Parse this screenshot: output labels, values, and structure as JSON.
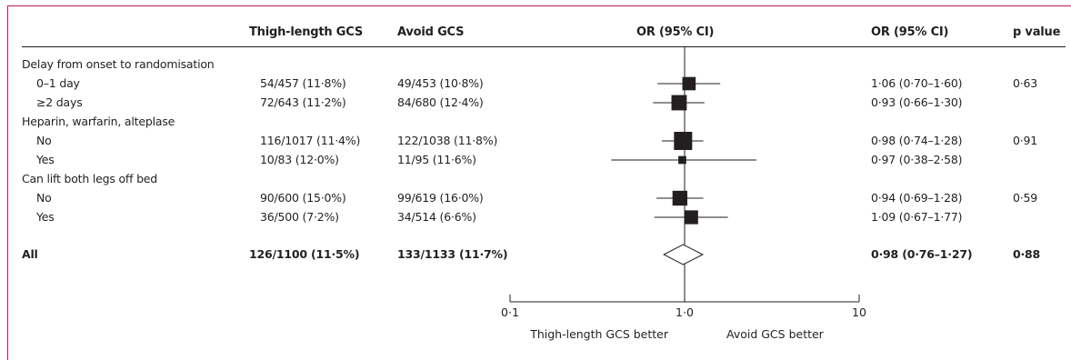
{
  "headers": {
    "thigh": "Thigh-length GCS",
    "avoid": "Avoid GCS",
    "or_plot": "OR (95% CI)",
    "or_text": "OR (95% CI)",
    "pvalue": "p value"
  },
  "rows": [
    {
      "label": "Delay from onset to randomisation",
      "type": "group"
    },
    {
      "label": "0–1 day",
      "type": "sub",
      "thigh": "54/457 (11·8%)",
      "avoid": "49/453 (10·8%)",
      "or_text": "1·06 (0·70–1·60)",
      "p": "0·63"
    },
    {
      "label": "≥2 days",
      "type": "sub",
      "thigh": "72/643 (11·2%)",
      "avoid": "84/680 (12·4%)",
      "or_text": "0·93 (0·66–1·30)",
      "p": ""
    },
    {
      "label": "Heparin, warfarin, alteplase",
      "type": "group"
    },
    {
      "label": "No",
      "type": "sub",
      "thigh": "116/1017 (11·4%)",
      "avoid": "122/1038 (11·8%)",
      "or_text": "0·98 (0·74–1·28)",
      "p": "0·91"
    },
    {
      "label": "Yes",
      "type": "sub",
      "thigh": "10/83 (12·0%)",
      "avoid": "11/95 (11·6%)",
      "or_text": "0·97 (0·38–2·58)",
      "p": ""
    },
    {
      "label": "Can lift both legs off bed",
      "type": "group"
    },
    {
      "label": "No",
      "type": "sub",
      "thigh": "90/600 (15·0%)",
      "avoid": "99/619 (16·0%)",
      "or_text": "0·94 (0·69–1·28)",
      "p": "0·59"
    },
    {
      "label": "Yes",
      "type": "sub",
      "thigh": "36/500 (7·2%)",
      "avoid": "34/514 (6·6%)",
      "or_text": "1·09 (0·67–1·77)",
      "p": ""
    },
    {
      "label": "All",
      "type": "overall",
      "thigh": "126/1100 (11·5%)",
      "avoid": "133/1133 (11·7%)",
      "or_text": "0·98 (0·76–1·27)",
      "p": "0·88"
    }
  ],
  "chart_data": {
    "type": "scatter",
    "subtype": "forest",
    "x_scale": "log",
    "xlim": [
      0.1,
      10
    ],
    "reference_line": 1.0,
    "tick_labels": [
      "0·1",
      "1·0",
      "10"
    ],
    "tick_values": [
      0.1,
      1,
      10
    ],
    "favours_left": "Thigh-length GCS better",
    "favours_right": "Avoid GCS better",
    "estimates": [
      {
        "subgroup": "Delay from onset to randomisation",
        "level": "0–1 day",
        "or": 1.06,
        "lo": 0.7,
        "hi": 1.6,
        "n": 910
      },
      {
        "subgroup": "Delay from onset to randomisation",
        "level": "≥2 days",
        "or": 0.93,
        "lo": 0.66,
        "hi": 1.3,
        "n": 1323
      },
      {
        "subgroup": "Heparin, warfarin, alteplase",
        "level": "No",
        "or": 0.98,
        "lo": 0.74,
        "hi": 1.28,
        "n": 2055
      },
      {
        "subgroup": "Heparin, warfarin, alteplase",
        "level": "Yes",
        "or": 0.97,
        "lo": 0.38,
        "hi": 2.58,
        "n": 178
      },
      {
        "subgroup": "Can lift both legs off bed",
        "level": "No",
        "or": 0.94,
        "lo": 0.69,
        "hi": 1.28,
        "n": 1219
      },
      {
        "subgroup": "Can lift both legs off bed",
        "level": "Yes",
        "or": 1.09,
        "lo": 0.67,
        "hi": 1.77,
        "n": 1014
      }
    ],
    "overall": {
      "or": 0.98,
      "lo": 0.76,
      "hi": 1.27
    }
  }
}
